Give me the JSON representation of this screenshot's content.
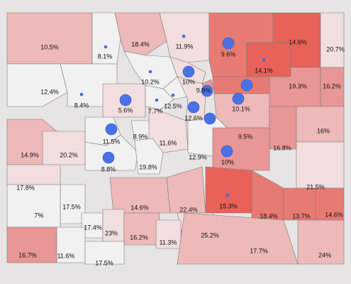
{
  "map": {
    "colors": {
      "background": "#e6e4e4",
      "border": "#7b7b7b",
      "bubble": "#4a72e6",
      "scale": [
        "#f1f1f1",
        "#f2dede",
        "#eeb9b9",
        "#e99696",
        "#e87a74",
        "#e8625a"
      ]
    },
    "counties": [
      {
        "id": "moffat",
        "label": "10.5%",
        "shade": 2
      },
      {
        "id": "routt",
        "label": "8.1%",
        "shade": 0
      },
      {
        "id": "jackson",
        "label": "18.4%",
        "shade": 2
      },
      {
        "id": "larimer",
        "label": "11.9%",
        "shade": 1
      },
      {
        "id": "weld",
        "label": "9.6%",
        "shade": 4
      },
      {
        "id": "logan",
        "label": "14.6%",
        "shade": 5
      },
      {
        "id": "sedgwick",
        "label": "20.7%",
        "shade": 1
      },
      {
        "id": "morgan",
        "label": "14.1%",
        "shade": 5
      },
      {
        "id": "washington",
        "label": "19.3%",
        "shade": 3
      },
      {
        "id": "yuma",
        "label": "16.2%",
        "shade": 3
      },
      {
        "id": "rio-blanco",
        "label": "12.4%",
        "shade": 0
      },
      {
        "id": "garfield",
        "label": "8.4%",
        "shade": 0
      },
      {
        "id": "eagle",
        "label": "5.6%",
        "shade": 1
      },
      {
        "id": "grand",
        "label": "10.2%",
        "shade": 0
      },
      {
        "id": "boulder",
        "label": "10%",
        "shade": 1
      },
      {
        "id": "broomfield",
        "label": "9.9%",
        "shade": 3
      },
      {
        "id": "adams",
        "label": "10.1%",
        "shade": 4
      },
      {
        "id": "clear-creek",
        "label": "12.5%",
        "shade": 0
      },
      {
        "id": "summit",
        "label": "7.7%",
        "shade": 0
      },
      {
        "id": "jefferson",
        "label": "12.6%",
        "shade": 1
      },
      {
        "id": "arapahoe",
        "label": "9.5%",
        "shade": 2
      },
      {
        "id": "elbert",
        "label": "16.8%",
        "shade": 3
      },
      {
        "id": "kit-carson",
        "label": "16%",
        "shade": 2
      },
      {
        "id": "mesa",
        "label": "14.9%",
        "shade": 2
      },
      {
        "id": "delta",
        "label": "20.2%",
        "shade": 1
      },
      {
        "id": "pitkin",
        "label": "11.5%",
        "shade": 0
      },
      {
        "id": "lake",
        "label": "8.9%",
        "shade": 0
      },
      {
        "id": "park",
        "label": "11.6%",
        "shade": 1
      },
      {
        "id": "douglas",
        "label": "12.9%",
        "shade": 0
      },
      {
        "id": "el-paso",
        "label": "10%",
        "shade": 3
      },
      {
        "id": "gunnison",
        "label": "8.8%",
        "shade": 0
      },
      {
        "id": "chaffee",
        "label": "19.8%",
        "shade": 0
      },
      {
        "id": "montrose",
        "label": "17.8%",
        "shade": 1
      },
      {
        "id": "cheyenne",
        "label": "21.5%",
        "shade": 1
      },
      {
        "id": "fremont",
        "label": "14.6%",
        "shade": 2
      },
      {
        "id": "pueblo",
        "label": "15.3%",
        "shade": 5
      },
      {
        "id": "crowley",
        "label": "18.4%",
        "shade": 4
      },
      {
        "id": "otero",
        "label": "13.7%",
        "shade": 4
      },
      {
        "id": "prowers",
        "label": "14.6%",
        "shade": 4
      },
      {
        "id": "custer",
        "label": "22.4%",
        "shade": 2
      },
      {
        "id": "ouray",
        "label": "17.5%",
        "shade": 0
      },
      {
        "id": "san-miguel",
        "label": "7%",
        "shade": 0
      },
      {
        "id": "hinsdale",
        "label": "17.4%",
        "shade": 0
      },
      {
        "id": "mineral",
        "label": "23%",
        "shade": 1
      },
      {
        "id": "saguache",
        "label": "16.2%",
        "shade": 2
      },
      {
        "id": "huerfano",
        "label": "25.2%",
        "shade": 1
      },
      {
        "id": "alamosa",
        "label": "11.3%",
        "shade": 1
      },
      {
        "id": "montezuma",
        "label": "16.7%",
        "shade": 3
      },
      {
        "id": "la-plata",
        "label": "11.6%",
        "shade": 0
      },
      {
        "id": "archuleta",
        "label": "17.5%",
        "shade": 0
      },
      {
        "id": "las-animas",
        "label": "17.7%",
        "shade": 2
      },
      {
        "id": "baca",
        "label": "24%",
        "shade": 2
      }
    ],
    "bubbles": [
      {
        "id": "routt-dot",
        "level": 1
      },
      {
        "id": "larimer-dot",
        "level": 1
      },
      {
        "id": "weld-bubble",
        "level": 4
      },
      {
        "id": "morgan-dot",
        "level": 1
      },
      {
        "id": "grand-dot",
        "level": 1
      },
      {
        "id": "boulder-bubble",
        "level": 4
      },
      {
        "id": "broomfield-bubble",
        "level": 4
      },
      {
        "id": "adams-bubble",
        "level": 4
      },
      {
        "id": "garfield-dot",
        "level": 1
      },
      {
        "id": "eagle-bubble",
        "level": 4
      },
      {
        "id": "summit-dot",
        "level": 1
      },
      {
        "id": "clear-creek-dot",
        "level": 1
      },
      {
        "id": "denver-bubble",
        "level": 4
      },
      {
        "id": "jefferson-bubble",
        "level": 4
      },
      {
        "id": "arapahoe-bubble",
        "level": 4
      },
      {
        "id": "pitkin-bubble",
        "level": 4
      },
      {
        "id": "el-paso-bubble",
        "level": 4
      },
      {
        "id": "gunnison-bubble",
        "level": 4
      },
      {
        "id": "pueblo-dot",
        "level": 1
      }
    ]
  }
}
